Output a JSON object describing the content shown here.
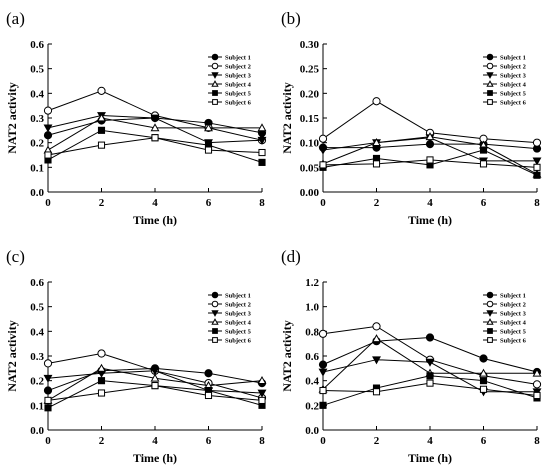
{
  "legend_labels": [
    "Subject 1",
    "Subject 2",
    "Subject 3",
    "Subject 4",
    "Subject 5",
    "Subject 6"
  ],
  "markers": [
    "circle-filled",
    "circle-open",
    "triangle-down-filled",
    "triangle-up-open",
    "square-filled",
    "square-open"
  ],
  "chart_data": [
    {
      "type": "line",
      "panel_label": "(a)",
      "xlabel": "Time (h)",
      "ylabel": "NAT2 activity",
      "x": [
        0,
        2,
        4,
        6,
        8
      ],
      "xlim": [
        0,
        8
      ],
      "ylim": [
        0,
        0.6
      ],
      "yticks": [
        "0.0",
        "0.1",
        "0.2",
        "0.3",
        "0.4",
        "0.5",
        "0.6"
      ],
      "xticks": [
        "0",
        "2",
        "4",
        "6",
        "8"
      ],
      "legend": "top-right",
      "grid": false,
      "series": [
        {
          "name": "Subject 1",
          "values": [
            0.23,
            0.29,
            0.3,
            0.28,
            0.24
          ]
        },
        {
          "name": "Subject 2",
          "values": [
            0.33,
            0.41,
            0.31,
            0.26,
            0.21
          ]
        },
        {
          "name": "Subject 3",
          "values": [
            0.26,
            0.31,
            0.3,
            0.2,
            0.21
          ]
        },
        {
          "name": "Subject 4",
          "values": [
            0.17,
            0.3,
            0.26,
            0.26,
            0.26
          ]
        },
        {
          "name": "Subject 5",
          "values": [
            0.13,
            0.25,
            0.22,
            0.19,
            0.12
          ]
        },
        {
          "name": "Subject 6",
          "values": [
            0.15,
            0.19,
            0.22,
            0.17,
            0.16
          ]
        }
      ]
    },
    {
      "type": "line",
      "panel_label": "(b)",
      "xlabel": "Time (h)",
      "ylabel": "NAT2 activity",
      "x": [
        0,
        2,
        4,
        6,
        8
      ],
      "xlim": [
        0,
        8
      ],
      "ylim": [
        0,
        0.3
      ],
      "yticks": [
        "0.00",
        "0.05",
        "0.10",
        "0.15",
        "0.20",
        "0.25",
        "0.30"
      ],
      "xticks": [
        "0",
        "2",
        "4",
        "6",
        "8"
      ],
      "legend": "top-right",
      "grid": false,
      "series": [
        {
          "name": "Subject 1",
          "values": [
            0.09,
            0.09,
            0.097,
            0.097,
            0.088
          ]
        },
        {
          "name": "Subject 2",
          "values": [
            0.108,
            0.184,
            0.12,
            0.108,
            0.1
          ]
        },
        {
          "name": "Subject 3",
          "values": [
            0.085,
            0.1,
            0.11,
            0.063,
            0.063
          ]
        },
        {
          "name": "Subject 4",
          "values": [
            0.057,
            0.1,
            0.112,
            0.095,
            0.036
          ]
        },
        {
          "name": "Subject 5",
          "values": [
            0.05,
            0.068,
            0.055,
            0.085,
            0.034
          ]
        },
        {
          "name": "Subject 6",
          "values": [
            0.055,
            0.057,
            0.065,
            0.057,
            0.05
          ]
        }
      ]
    },
    {
      "type": "line",
      "panel_label": "(c)",
      "xlabel": "Time (h)",
      "ylabel": "NAT2 activity",
      "x": [
        0,
        2,
        4,
        6,
        8
      ],
      "xlim": [
        0,
        8
      ],
      "ylim": [
        0,
        0.6
      ],
      "yticks": [
        "0.0",
        "0.1",
        "0.2",
        "0.3",
        "0.4",
        "0.5",
        "0.6"
      ],
      "xticks": [
        "0",
        "2",
        "4",
        "6",
        "8"
      ],
      "legend": "top-right",
      "grid": false,
      "series": [
        {
          "name": "Subject 1",
          "values": [
            0.16,
            0.24,
            0.25,
            0.23,
            0.19
          ]
        },
        {
          "name": "Subject 2",
          "values": [
            0.27,
            0.31,
            0.24,
            0.19,
            0.13
          ]
        },
        {
          "name": "Subject 3",
          "values": [
            0.21,
            0.23,
            0.24,
            0.16,
            0.15
          ]
        },
        {
          "name": "Subject 4",
          "values": [
            0.12,
            0.25,
            0.21,
            0.18,
            0.2
          ]
        },
        {
          "name": "Subject 5",
          "values": [
            0.09,
            0.2,
            0.18,
            0.16,
            0.1
          ]
        },
        {
          "name": "Subject 6",
          "values": [
            0.12,
            0.15,
            0.18,
            0.14,
            0.12
          ]
        }
      ]
    },
    {
      "type": "line",
      "panel_label": "(d)",
      "xlabel": "Time (h)",
      "ylabel": "NAT2 activity",
      "x": [
        0,
        2,
        4,
        6,
        8
      ],
      "xlim": [
        0,
        8
      ],
      "ylim": [
        0,
        1.2
      ],
      "yticks": [
        "0.0",
        "0.2",
        "0.4",
        "0.6",
        "0.8",
        "1.0",
        "1.2"
      ],
      "xticks": [
        "0",
        "2",
        "4",
        "6",
        "8"
      ],
      "legend": "top-right",
      "grid": false,
      "series": [
        {
          "name": "Subject 1",
          "values": [
            0.53,
            0.72,
            0.75,
            0.58,
            0.47
          ]
        },
        {
          "name": "Subject 2",
          "values": [
            0.78,
            0.84,
            0.57,
            0.44,
            0.37
          ]
        },
        {
          "name": "Subject 3",
          "values": [
            0.47,
            0.57,
            0.55,
            0.31,
            0.31
          ]
        },
        {
          "name": "Subject 4",
          "values": [
            0.33,
            0.74,
            0.46,
            0.46,
            0.46
          ]
        },
        {
          "name": "Subject 5",
          "values": [
            0.2,
            0.34,
            0.44,
            0.4,
            0.26
          ]
        },
        {
          "name": "Subject 6",
          "values": [
            0.32,
            0.31,
            0.38,
            0.33,
            0.28
          ]
        }
      ]
    }
  ]
}
